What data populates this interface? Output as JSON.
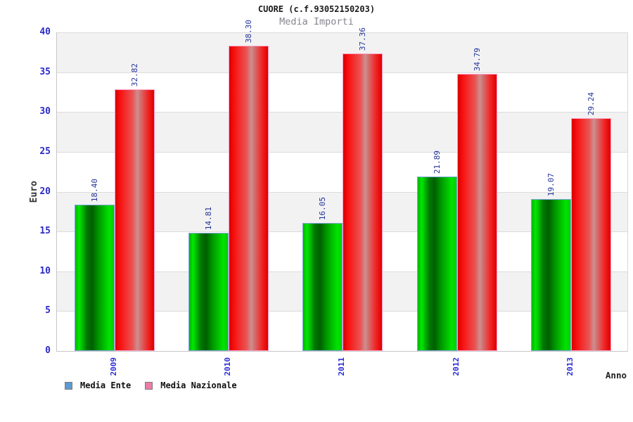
{
  "header": {
    "title": "CUORE (c.f.93052150203)",
    "subtitle": "Media Importi"
  },
  "chart_data": {
    "type": "bar",
    "title": "CUORE (c.f.93052150203)",
    "subtitle": "Media Importi",
    "categories": [
      "2009",
      "2010",
      "2011",
      "2012",
      "2013"
    ],
    "series": [
      {
        "name": "Media Ente",
        "values": [
          18.4,
          14.81,
          16.05,
          21.89,
          19.07
        ],
        "value_labels": [
          "18.40",
          "14.81",
          "16.05",
          "21.89",
          "19.07"
        ],
        "bar_gradient": [
          "#00b600 0%",
          "#00e900 10%",
          "#007800 30%",
          "#006000 44%",
          "#009600 60%",
          "#00e300 88%",
          "#00cd00 100%"
        ],
        "bar_border_color": "#7fa8dc",
        "legend_color": "#5b9bd5"
      },
      {
        "name": "Media Nazionale",
        "values": [
          32.82,
          38.3,
          37.36,
          34.79,
          29.24
        ],
        "value_labels": [
          "32.82",
          "38.30",
          "37.36",
          "34.79",
          "29.24"
        ],
        "bar_gradient": [
          "#d90000 0%",
          "#f91111 13%",
          "#e95555 45%",
          "#ca9191 57%",
          "#d27777 63%",
          "#f02222 85%",
          "#df0000 100%"
        ],
        "bar_border_color": "#ff9ec4",
        "legend_color": "#ee7ba7"
      }
    ],
    "xlabel": "Anno",
    "ylabel": "Euro",
    "ylim": [
      0,
      40
    ],
    "ytick_step": 5,
    "yticks": [
      "0",
      "5",
      "10",
      "15",
      "20",
      "25",
      "30",
      "35",
      "40"
    ],
    "grid": true,
    "legend_position": "bottom",
    "styles": {
      "band_color": "#f2f2f2",
      "grid_color": "#dcdcdc",
      "ytick_color": "#2a2ac8",
      "xtick_color": "#2d2dd4",
      "value_label_color": "#223399"
    }
  }
}
